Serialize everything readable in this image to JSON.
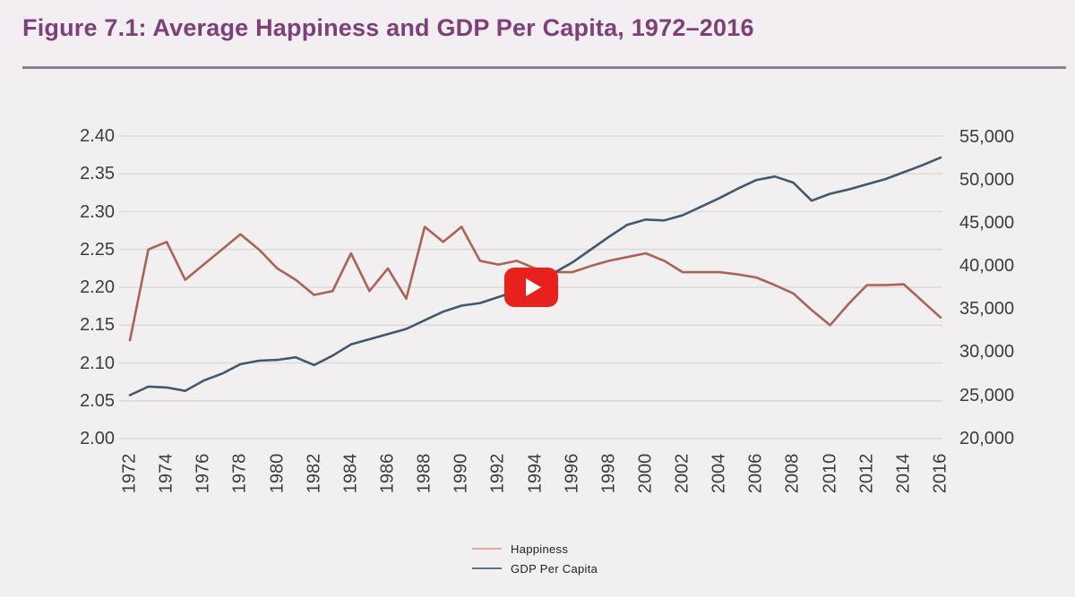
{
  "header": {
    "title": "Figure 7.1: Average Happiness and GDP Per Capita, 1972–2016"
  },
  "video": {
    "play_button_label": "Play video"
  },
  "legend": {
    "items": [
      {
        "label": "Happiness",
        "swatch_color": "#dcab9d"
      },
      {
        "label": "GDP Per Capita",
        "swatch_color": "#5f7287"
      }
    ]
  },
  "chart_data": {
    "type": "line",
    "title": "Figure 7.1: Average Happiness and GDP Per Capita, 1972–2016",
    "grid": "horizontal",
    "legend_position": "bottom-center",
    "years": [
      1972,
      1973,
      1974,
      1975,
      1976,
      1977,
      1978,
      1979,
      1980,
      1981,
      1982,
      1983,
      1984,
      1985,
      1986,
      1987,
      1988,
      1989,
      1990,
      1991,
      1992,
      1993,
      1994,
      1995,
      1996,
      1997,
      1998,
      1999,
      2000,
      2001,
      2002,
      2003,
      2004,
      2005,
      2006,
      2007,
      2008,
      2009,
      2010,
      2011,
      2012,
      2013,
      2014,
      2015,
      2016
    ],
    "x_tick_labels": [
      "1972",
      "1974",
      "1976",
      "1978",
      "1980",
      "1982",
      "1984",
      "1986",
      "1988",
      "1990",
      "1992",
      "1994",
      "1996",
      "1998",
      "2000",
      "2002",
      "2004",
      "2006",
      "2008",
      "2010",
      "2012",
      "2014",
      "2016"
    ],
    "left_axis": {
      "min": 2.0,
      "max": 2.4,
      "tick_step": 0.05,
      "tick_labels": [
        "2.40",
        "2.35",
        "2.30",
        "2.25",
        "2.20",
        "2.15",
        "2.10",
        "2.05",
        "2.00"
      ]
    },
    "right_axis": {
      "min": 20000,
      "max": 55000,
      "tick_step": 5000,
      "tick_labels": [
        "55,000",
        "50,000",
        "45,000",
        "40,000",
        "35,000",
        "30,000",
        "25,000",
        "20,000"
      ]
    },
    "series": [
      {
        "name": "Happiness",
        "axis": "left",
        "color": "#ab6354",
        "values": [
          2.13,
          2.25,
          2.26,
          2.21,
          2.23,
          2.25,
          2.27,
          2.25,
          2.225,
          2.21,
          2.19,
          2.195,
          2.245,
          2.195,
          2.225,
          2.185,
          2.28,
          2.26,
          2.28,
          2.235,
          2.23,
          2.235,
          2.225,
          2.22,
          2.22,
          2.228,
          2.235,
          2.24,
          2.245,
          2.235,
          2.22,
          2.22,
          2.22,
          2.217,
          2.213,
          2.203,
          2.192,
          2.17,
          2.15,
          2.178,
          2.203,
          2.203,
          2.204,
          2.182,
          2.16
        ]
      },
      {
        "name": "GDP Per Capita",
        "axis": "right",
        "color": "#41586e",
        "values": [
          25000,
          26000,
          25900,
          25500,
          26700,
          27500,
          28600,
          29000,
          29100,
          29400,
          28500,
          29600,
          30900,
          31500,
          32100,
          32700,
          33700,
          34700,
          35400,
          35700,
          36400,
          37100,
          38100,
          39200,
          40400,
          41900,
          43400,
          44800,
          45400,
          45300,
          45900,
          46900,
          47900,
          49000,
          50000,
          50400,
          49700,
          47600,
          48400,
          48900,
          49500,
          50100,
          50900,
          51700,
          52600
        ]
      }
    ],
    "colors": {
      "gridline": "#dcdadb",
      "tick_text": "#3d3d3d",
      "title": "#7d4078",
      "divider": "#8f7d8f",
      "play_button": "#e8211d"
    }
  }
}
